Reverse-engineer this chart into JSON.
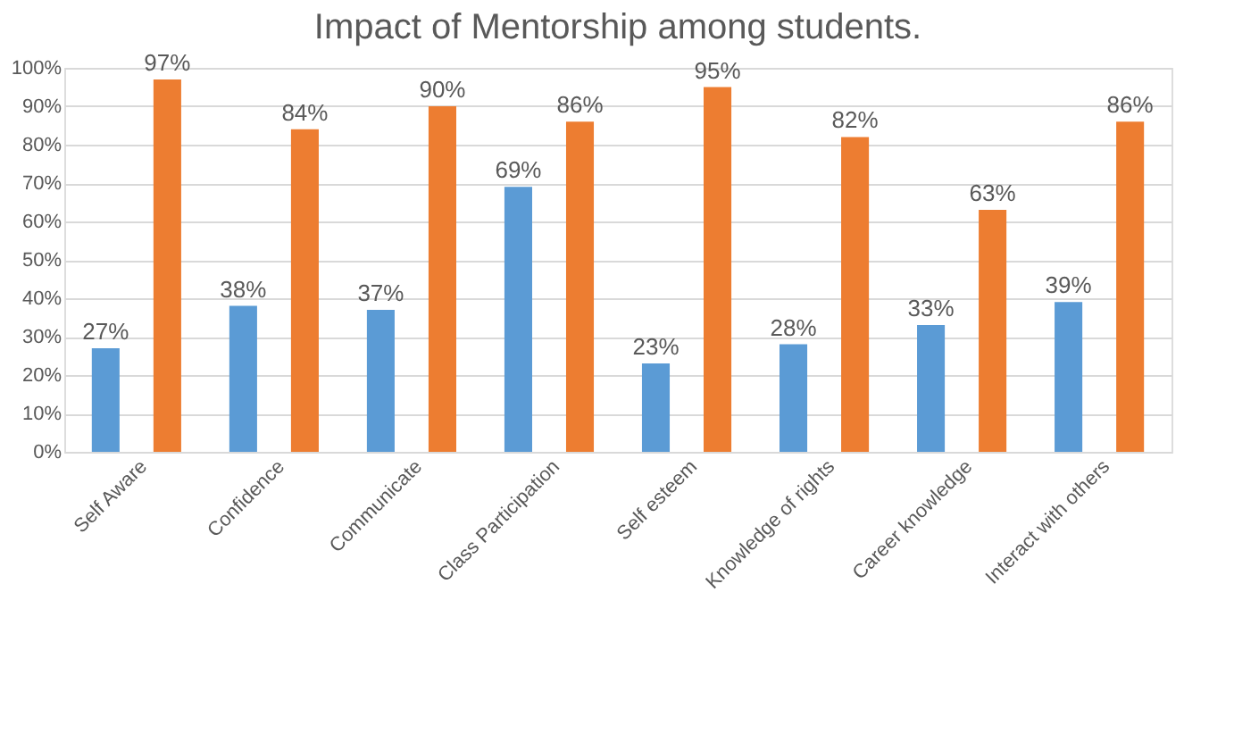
{
  "chart_data": {
    "type": "bar",
    "title": "Impact of Mentorship among students.",
    "categories": [
      "Self Aware",
      "Confidence",
      "Communicate",
      "Class Participation",
      "Self esteem",
      "Knowledge of rights",
      "Career knowledge",
      "Interact with others"
    ],
    "series": [
      {
        "color": "#5b9bd5",
        "values": [
          27,
          38,
          37,
          69,
          23,
          28,
          33,
          39
        ],
        "value_labels": [
          "27%",
          "38%",
          "37%",
          "69%",
          "23%",
          "28%",
          "33%",
          "39%"
        ]
      },
      {
        "color": "#ed7d31",
        "values": [
          97,
          84,
          90,
          86,
          95,
          82,
          63,
          86
        ],
        "value_labels": [
          "97%",
          "84%",
          "90%",
          "86%",
          "95%",
          "82%",
          "63%",
          "86%"
        ]
      }
    ],
    "ylim": [
      0,
      100
    ],
    "yticks": [
      {
        "value": 0,
        "label": "0%"
      },
      {
        "value": 10,
        "label": "10%"
      },
      {
        "value": 20,
        "label": "20%"
      },
      {
        "value": 30,
        "label": "30%"
      },
      {
        "value": 40,
        "label": "40%"
      },
      {
        "value": 50,
        "label": "50%"
      },
      {
        "value": 60,
        "label": "60%"
      },
      {
        "value": 70,
        "label": "70%"
      },
      {
        "value": 80,
        "label": "80%"
      },
      {
        "value": 90,
        "label": "90%"
      },
      {
        "value": 100,
        "label": "100%"
      }
    ],
    "grid": "y",
    "legend": false
  }
}
